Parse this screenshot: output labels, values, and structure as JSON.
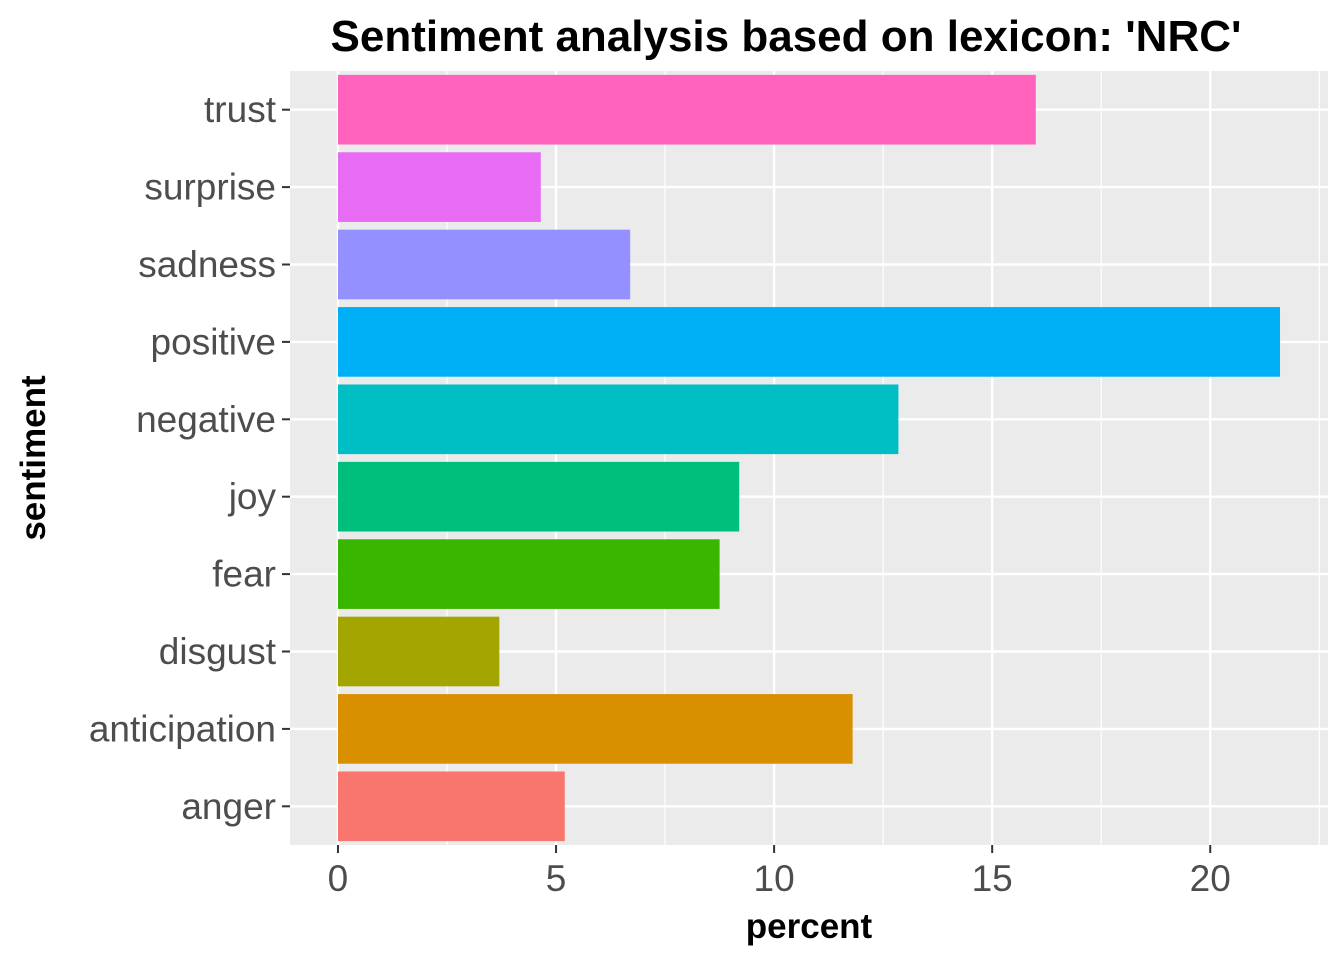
{
  "chart_data": {
    "type": "bar",
    "orientation": "horizontal",
    "title": "Sentiment analysis based on lexicon: 'NRC'",
    "xlabel": "percent",
    "ylabel": "sentiment",
    "categories": [
      "anger",
      "anticipation",
      "disgust",
      "fear",
      "joy",
      "negative",
      "positive",
      "sadness",
      "surprise",
      "trust"
    ],
    "values": [
      5.2,
      11.8,
      3.7,
      8.75,
      9.2,
      12.85,
      21.6,
      6.7,
      4.65,
      16.0
    ],
    "colors": [
      "#F8766D",
      "#D89000",
      "#A3A500",
      "#39B600",
      "#00BF7D",
      "#00BFC4",
      "#00B0F6",
      "#9590FF",
      "#E76BF3",
      "#FF62BC"
    ],
    "xlim": [
      -1.1,
      22.7
    ],
    "xticks": [
      0,
      5,
      10,
      15,
      20
    ],
    "xtick_labels": [
      "0",
      "5",
      "10",
      "15",
      "20"
    ],
    "grid": true,
    "legend": "none",
    "panel_background": "#EBEBEB",
    "grid_color": "#FFFFFF"
  }
}
